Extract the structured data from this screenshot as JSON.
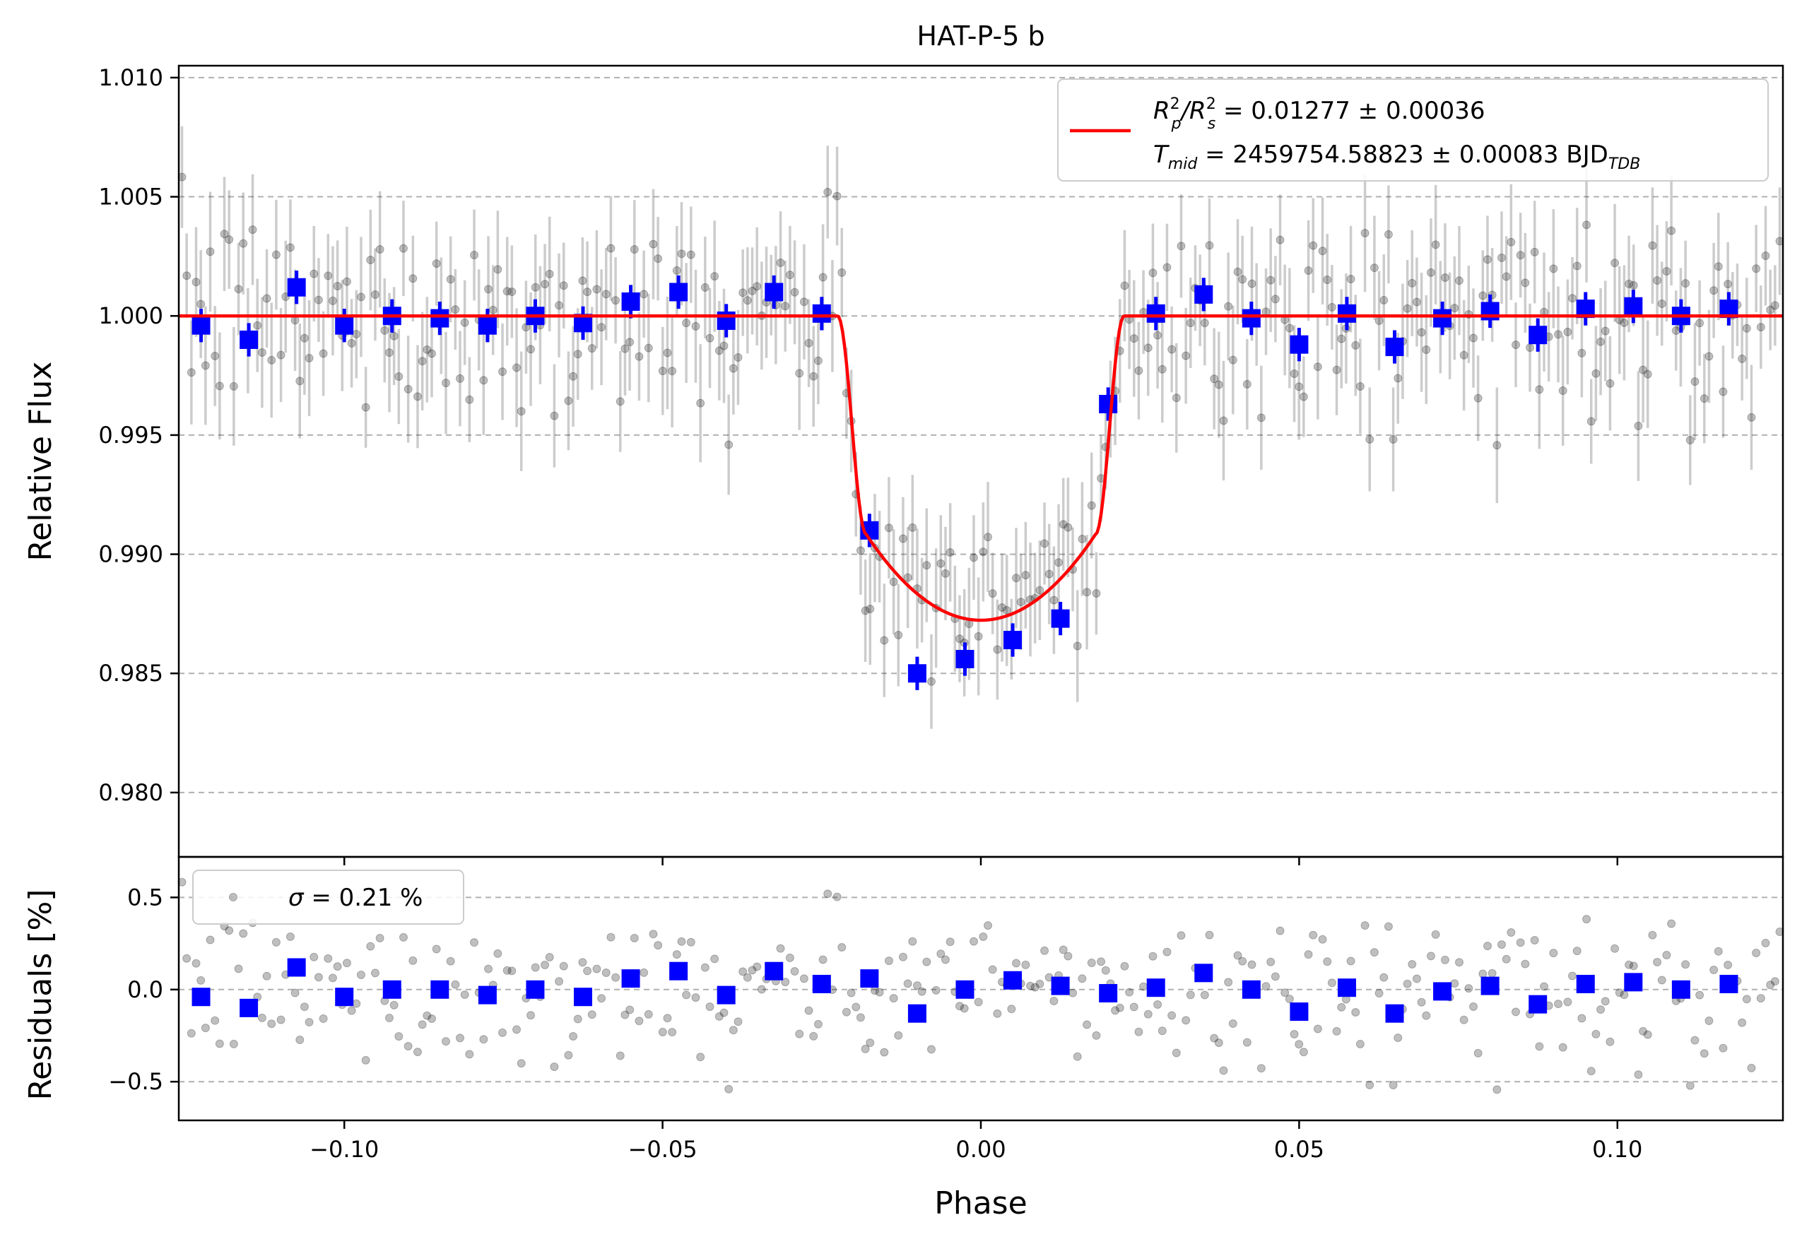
{
  "chart_data": [
    {
      "panel": "top",
      "type": "scatter",
      "title": "HAT-P-5 b",
      "xlabel": "Phase",
      "ylabel": "Relative Flux",
      "xlim": [
        -0.126,
        0.126
      ],
      "ylim": [
        0.9773,
        1.0105
      ],
      "yticks": [
        0.98,
        0.985,
        0.99,
        0.995,
        1.0,
        1.005,
        1.01
      ],
      "ytick_labels": [
        "0.980",
        "0.985",
        "0.990",
        "0.995",
        "1.000",
        "1.005",
        "1.010"
      ],
      "grid": "y-dashed",
      "legend_position": "top-right",
      "model": {
        "color": "#ff0000",
        "legend_line1_parts": [
          "R",
          "2",
          "p",
          "/R",
          "2",
          "s",
          " = 0.01277 ± 0.00036"
        ],
        "legend_line2_parts": [
          "T",
          "mid",
          " = 2459754.58823 ± 0.00083 BJD",
          "TDB"
        ],
        "depth": 0.01277,
        "transit_half_duration": 0.0225,
        "ingress_duration": 0.0045
      },
      "binned_points": {
        "color": "#0000ff",
        "x": [
          -0.1225,
          -0.115,
          -0.1075,
          -0.1,
          -0.0925,
          -0.085,
          -0.0775,
          -0.07,
          -0.0625,
          -0.055,
          -0.0475,
          -0.04,
          -0.0325,
          -0.025,
          -0.0175,
          -0.01,
          -0.0025,
          0.005,
          0.0125,
          0.02,
          0.0275,
          0.035,
          0.0425,
          0.05,
          0.0575,
          0.065,
          0.0725,
          0.08,
          0.0875,
          0.095,
          0.1025,
          0.11,
          0.1175
        ],
        "y": [
          0.9996,
          0.999,
          1.0012,
          0.9996,
          1.0,
          0.9999,
          0.9996,
          1.0,
          0.9997,
          1.0006,
          1.001,
          0.9998,
          1.001,
          1.0001,
          0.991,
          0.985,
          0.9856,
          0.9864,
          0.9873,
          0.9963,
          1.0001,
          1.0009,
          0.9999,
          0.9988,
          1.0001,
          0.9987,
          0.9999,
          1.0002,
          0.9992,
          1.0003,
          1.0004,
          1.0,
          1.0003
        ],
        "err": [
          0.0007,
          0.0007,
          0.0007,
          0.0007,
          0.0007,
          0.0007,
          0.0007,
          0.0007,
          0.0007,
          0.0007,
          0.0007,
          0.0007,
          0.0007,
          0.0007,
          0.0007,
          0.0007,
          0.0007,
          0.0007,
          0.0007,
          0.0007,
          0.0007,
          0.0007,
          0.0007,
          0.0007,
          0.0007,
          0.0007,
          0.0007,
          0.0007,
          0.0007,
          0.0007,
          0.0007,
          0.0007,
          0.0007
        ]
      },
      "raw_points": {
        "color": "#000000",
        "alpha": 0.25,
        "x_start": -0.1255,
        "x_end": 0.1255,
        "count": 340,
        "scatter_sigma": 0.0021,
        "error_bar": 0.0021
      }
    },
    {
      "panel": "bottom",
      "type": "scatter",
      "xlabel": "Phase",
      "ylabel": "Residuals [%]",
      "xlim": [
        -0.126,
        0.126
      ],
      "ylim": [
        -0.71,
        0.72
      ],
      "xticks": [
        -0.1,
        -0.05,
        0.0,
        0.05,
        0.1
      ],
      "xtick_labels": [
        "−0.10",
        "−0.05",
        "0.00",
        "0.05",
        "0.10"
      ],
      "yticks": [
        -0.5,
        0.0,
        0.5
      ],
      "ytick_labels": [
        "−0.5",
        "0.0",
        "0.5"
      ],
      "grid": "y-dashed",
      "legend_position": "top-left",
      "legend_text_parts": [
        "σ",
        " = 0.21 %"
      ],
      "binned_points": {
        "color": "#0000ff",
        "x": [
          -0.1225,
          -0.115,
          -0.1075,
          -0.1,
          -0.0925,
          -0.085,
          -0.0775,
          -0.07,
          -0.0625,
          -0.055,
          -0.0475,
          -0.04,
          -0.0325,
          -0.025,
          -0.0175,
          -0.01,
          -0.0025,
          0.005,
          0.0125,
          0.02,
          0.0275,
          0.035,
          0.0425,
          0.05,
          0.0575,
          0.065,
          0.0725,
          0.08,
          0.0875,
          0.095,
          0.1025,
          0.11,
          0.1175
        ],
        "y": [
          -0.04,
          -0.1,
          0.12,
          -0.04,
          0.0,
          0.0,
          -0.03,
          0.0,
          -0.04,
          0.06,
          0.1,
          -0.03,
          0.1,
          0.03,
          0.06,
          -0.13,
          0.0,
          0.05,
          0.02,
          -0.02,
          0.01,
          0.09,
          0.0,
          -0.12,
          0.01,
          -0.13,
          -0.01,
          0.02,
          -0.08,
          0.03,
          0.04,
          0.0,
          0.03
        ]
      },
      "raw_points": {
        "color": "#000000",
        "alpha": 0.25,
        "sigma_percent": 0.21
      }
    }
  ]
}
